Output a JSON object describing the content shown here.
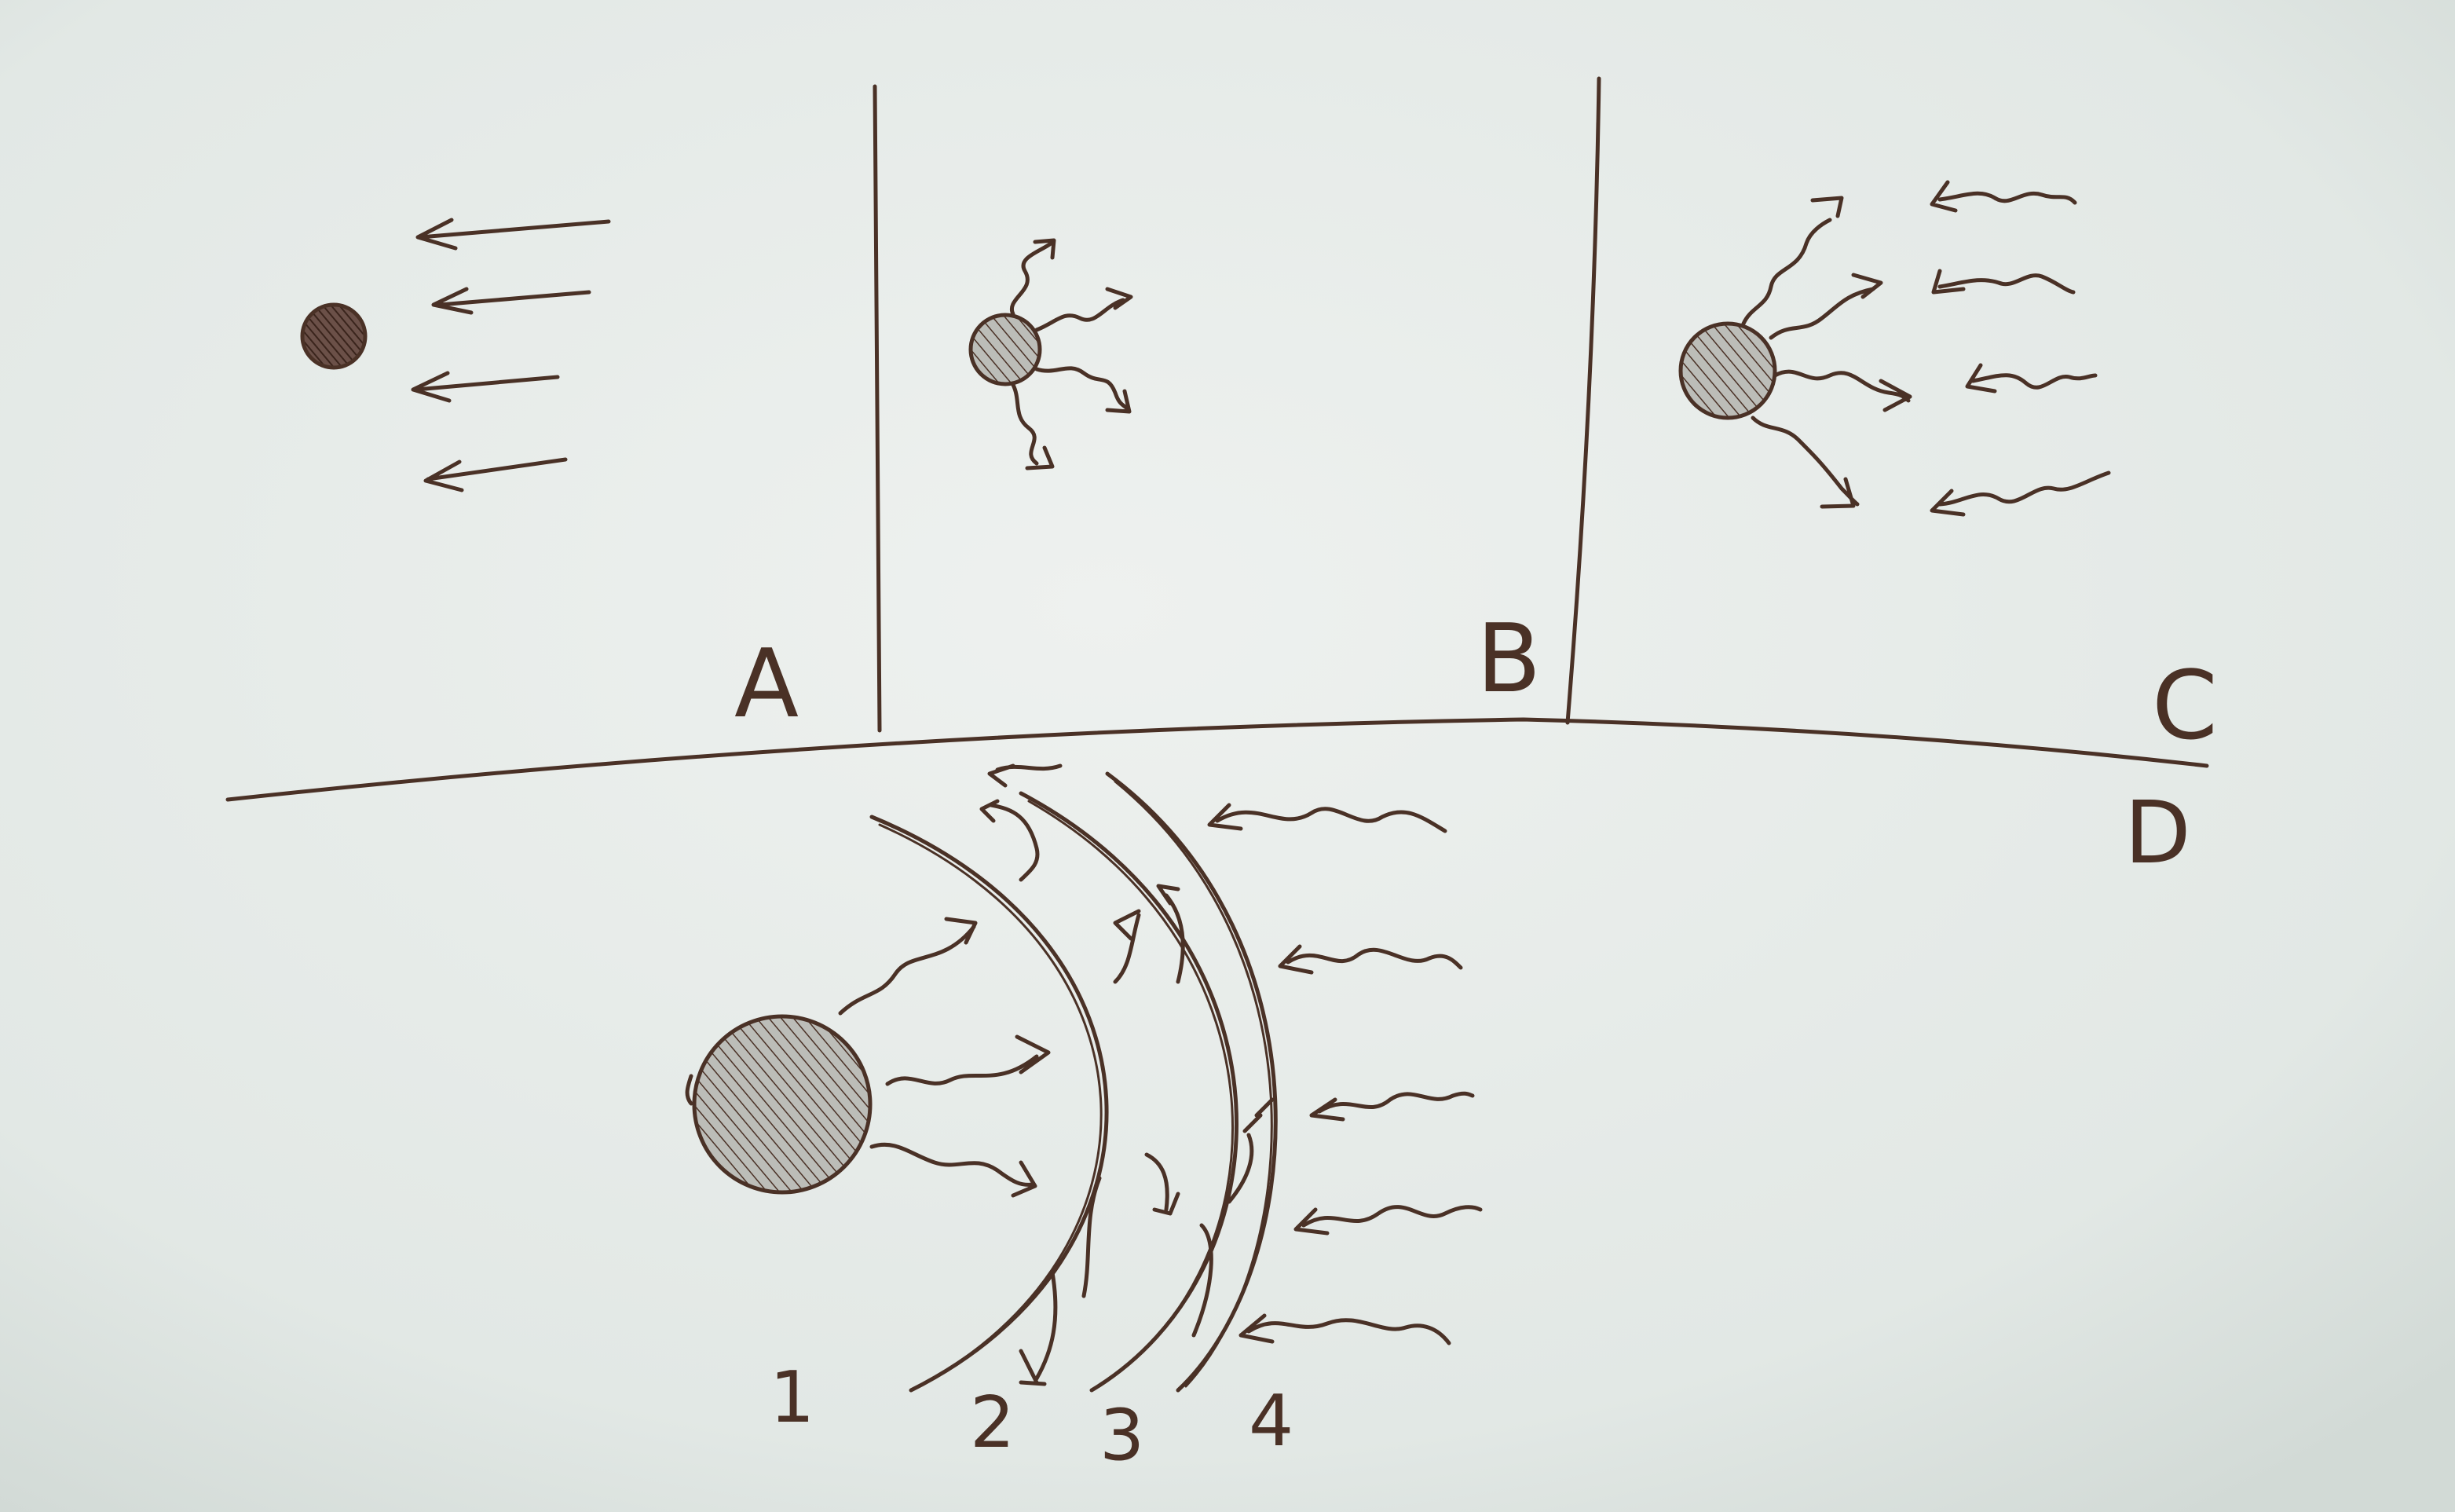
{
  "colors": {
    "ink": "#4a3126",
    "paper_light": "#eef1ef",
    "paper_dark": "#d4dcd8",
    "background": "#2a2a28"
  },
  "panels": {
    "a": {
      "label": "A"
    },
    "b": {
      "label": "B"
    },
    "c": {
      "label": "C"
    },
    "d": {
      "label": "D",
      "layers": [
        {
          "label": "1"
        },
        {
          "label": "2"
        },
        {
          "label": "3"
        },
        {
          "label": "4"
        }
      ]
    }
  }
}
